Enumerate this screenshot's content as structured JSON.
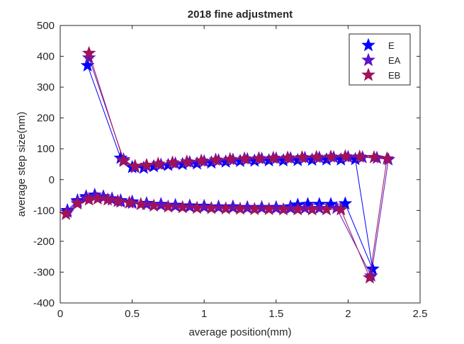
{
  "chart_data": {
    "type": "line",
    "title": "2018 fine adjustment",
    "xlabel": "average position(mm)",
    "ylabel": "average step size(nm)",
    "xlim": [
      0,
      2.5
    ],
    "ylim": [
      -400,
      500
    ],
    "xticks": [
      0,
      0.5,
      1,
      1.5,
      2,
      2.5
    ],
    "xtick_labels": [
      "0",
      "0.5",
      "1",
      "1.5",
      "2",
      "2.5"
    ],
    "yticks": [
      -400,
      -300,
      -200,
      -100,
      0,
      100,
      200,
      300,
      400,
      500
    ],
    "ytick_labels": [
      "-400",
      "-300",
      "-200",
      "-100",
      "0",
      "100",
      "200",
      "300",
      "400",
      "500"
    ],
    "grid": false,
    "legend_position": "top-right",
    "marker": "pentagram",
    "series": [
      {
        "name": "E",
        "color": "#0000ff",
        "x": [
          0.05,
          0.12,
          0.18,
          0.24,
          0.3,
          0.36,
          0.42,
          0.5,
          0.6,
          0.7,
          0.8,
          0.9,
          1.0,
          1.1,
          1.2,
          1.3,
          1.4,
          1.5,
          1.6,
          1.65,
          1.72,
          1.8,
          1.88,
          1.98,
          2.17,
          2.05,
          1.95,
          1.85,
          1.75,
          1.65,
          1.55,
          1.45,
          1.35,
          1.25,
          1.15,
          1.05,
          0.95,
          0.85,
          0.75,
          0.65,
          0.58,
          0.5,
          0.42,
          0.19
        ],
        "y": [
          -100,
          -68,
          -55,
          -50,
          -55,
          -62,
          -68,
          -72,
          -77,
          -80,
          -83,
          -85,
          -86,
          -88,
          -88,
          -90,
          -90,
          -90,
          -88,
          -82,
          -80,
          -80,
          -80,
          -78,
          -290,
          66,
          65,
          65,
          64,
          63,
          62,
          62,
          61,
          60,
          58,
          55,
          52,
          50,
          47,
          43,
          38,
          40,
          70,
          370
        ]
      },
      {
        "name": "EA",
        "color": "#5b12c8",
        "x": [
          0.05,
          0.12,
          0.18,
          0.24,
          0.3,
          0.36,
          0.42,
          0.5,
          0.6,
          0.7,
          0.8,
          0.9,
          1.0,
          1.1,
          1.2,
          1.3,
          1.4,
          1.5,
          1.6,
          1.7,
          1.8,
          1.92,
          2.16,
          2.28,
          2.2,
          2.1,
          2.0,
          1.9,
          1.8,
          1.7,
          1.6,
          1.5,
          1.4,
          1.3,
          1.2,
          1.1,
          1.0,
          0.9,
          0.8,
          0.7,
          0.6,
          0.52,
          0.44,
          0.2
        ],
        "y": [
          -105,
          -72,
          -60,
          -55,
          -58,
          -65,
          -72,
          -76,
          -80,
          -83,
          -86,
          -88,
          -89,
          -90,
          -91,
          -92,
          -92,
          -93,
          -93,
          -93,
          -93,
          -92,
          -312,
          65,
          70,
          72,
          73,
          72,
          71,
          70,
          69,
          68,
          67,
          66,
          64,
          62,
          59,
          56,
          52,
          48,
          44,
          40,
          65,
          395
        ]
      },
      {
        "name": "EB",
        "color": "#a0125a",
        "x": [
          0.04,
          0.12,
          0.2,
          0.26,
          0.33,
          0.4,
          0.48,
          0.56,
          0.65,
          0.75,
          0.85,
          0.95,
          1.05,
          1.15,
          1.25,
          1.35,
          1.45,
          1.55,
          1.65,
          1.75,
          1.85,
          1.95,
          2.15,
          2.27,
          2.18,
          2.08,
          1.98,
          1.88,
          1.78,
          1.68,
          1.58,
          1.48,
          1.38,
          1.28,
          1.18,
          1.08,
          0.98,
          0.88,
          0.78,
          0.68,
          0.6,
          0.52,
          0.44,
          0.2
        ],
        "y": [
          -112,
          -78,
          -65,
          -62,
          -65,
          -70,
          -75,
          -80,
          -85,
          -88,
          -90,
          -92,
          -93,
          -94,
          -95,
          -96,
          -96,
          -97,
          -97,
          -97,
          -97,
          -97,
          -318,
          68,
          72,
          74,
          75,
          74,
          73,
          72,
          71,
          70,
          69,
          68,
          66,
          64,
          61,
          58,
          55,
          51,
          47,
          44,
          60,
          410
        ]
      }
    ]
  }
}
